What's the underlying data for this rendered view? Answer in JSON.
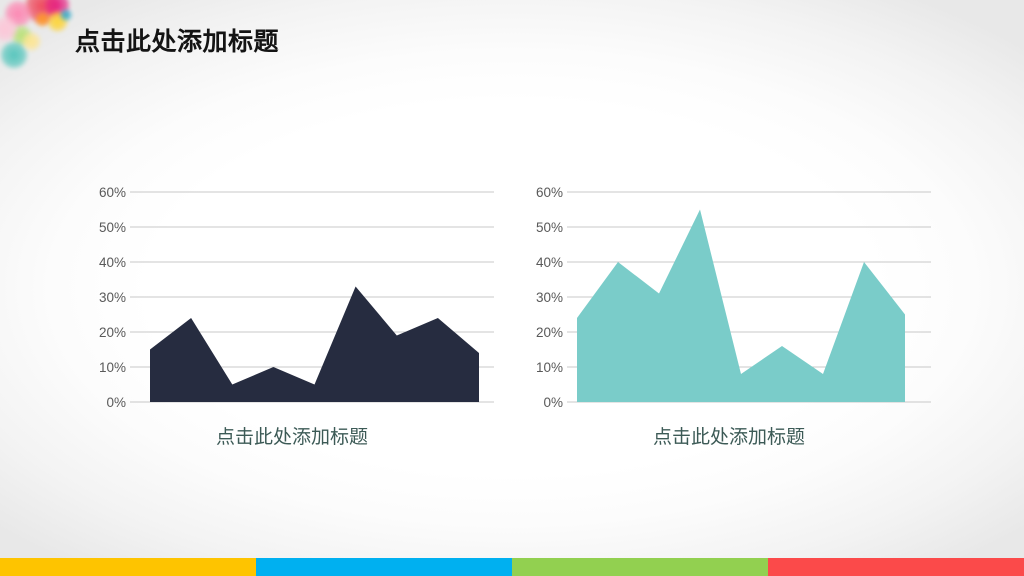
{
  "slide": {
    "title": "点击此处添加标题"
  },
  "chart_data": [
    {
      "type": "area",
      "title": "点击此处添加标题",
      "values": [
        15,
        24,
        5,
        10,
        5,
        33,
        19,
        24,
        14
      ],
      "xlabel": "",
      "ylabel": "",
      "ylim": [
        0,
        60
      ],
      "y_ticks": [
        "60%",
        "50%",
        "40%",
        "30%",
        "20%",
        "10%",
        "0%"
      ],
      "grid": true,
      "legend": "none",
      "fill_color": "#262c40"
    },
    {
      "type": "area",
      "title": "点击此处添加标题",
      "values": [
        24,
        40,
        31,
        55,
        8,
        16,
        8,
        40,
        25
      ],
      "xlabel": "",
      "ylabel": "",
      "ylim": [
        0,
        60
      ],
      "y_ticks": [
        "60%",
        "50%",
        "40%",
        "30%",
        "20%",
        "10%",
        "0%"
      ],
      "grid": true,
      "legend": "none",
      "fill_color": "#7accc9"
    }
  ],
  "chart_style": {
    "gridline_color": "#c8c8c8",
    "tick_label_color": "#595959",
    "caption_color": "#3c5a56"
  },
  "footer": {
    "stripe_colors": [
      "#fec400",
      "#00b0f0",
      "#92d050",
      "#fb4a4a"
    ]
  },
  "decoration": {
    "name": "paint-splash",
    "colors": [
      "#f03c50",
      "#ff7fae",
      "#e5197d",
      "#ffd226",
      "#ff9a1f",
      "#29a8c8",
      "#b4e06e",
      "#49c2b8",
      "#ffc3d6",
      "#ffe58a"
    ]
  }
}
